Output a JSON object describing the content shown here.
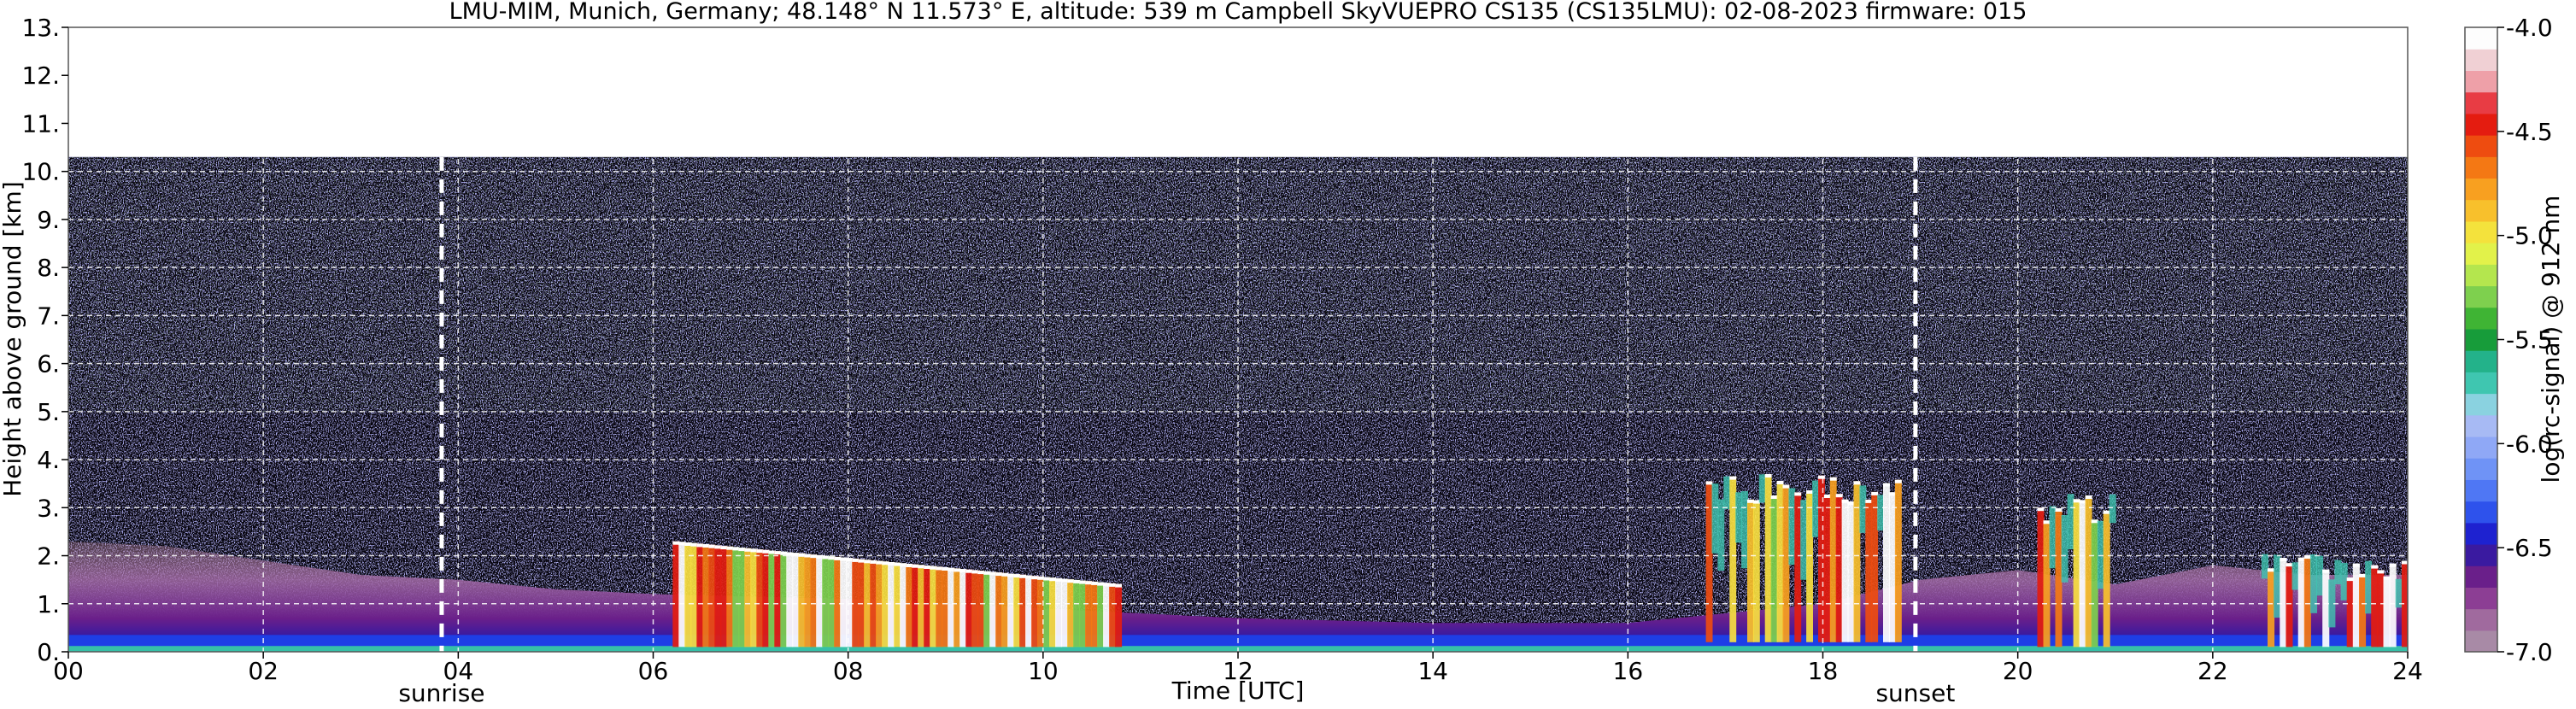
{
  "chart_data": {
    "type": "heatmap",
    "title": "LMU-MIM, Munich, Germany; 48.148° N 11.573° E, altitude: 539 m    Campbell SkyVUEPRO CS135 (CS135LMU): 02-08-2023    firmware: 015",
    "xlabel": "Time [UTC]",
    "ylabel": "Height above ground [km]",
    "xlim": [
      0,
      24
    ],
    "ylim": [
      0,
      13
    ],
    "x_ticks": [
      "00",
      "02",
      "04",
      "06",
      "08",
      "10",
      "12",
      "14",
      "16",
      "18",
      "20",
      "22",
      "24"
    ],
    "y_ticks": [
      "0.",
      "1.",
      "2.",
      "3.",
      "4.",
      "5.",
      "6.",
      "7.",
      "8.",
      "9.",
      "10.",
      "11.",
      "12.",
      "13."
    ],
    "grid": true,
    "annotations": [
      {
        "label": "sunrise",
        "x": 3.83
      },
      {
        "label": "sunset",
        "x": 18.95
      }
    ],
    "colorbar": {
      "label": "log(rc-signal) @ 912 nm",
      "range": [
        -7.0,
        -4.0
      ],
      "ticks": [
        "-4.0",
        "-4.5",
        "-5.0",
        "-5.5",
        "-6.0",
        "-6.5",
        "-7.0"
      ],
      "tick_values": [
        -4.0,
        -4.5,
        -5.0,
        -5.5,
        -6.0,
        -6.5,
        -7.0
      ],
      "colors": [
        "#a88aa6",
        "#a06a9e",
        "#8c3e94",
        "#6a1f8a",
        "#3a1aa0",
        "#1e22d0",
        "#2e52ec",
        "#4f77f4",
        "#6f93f6",
        "#8fa8f6",
        "#a7baf4",
        "#8ad2e0",
        "#3fc6b0",
        "#23b28a",
        "#179c3a",
        "#3fb434",
        "#7ed04e",
        "#b4e64e",
        "#e2f24a",
        "#f4e23c",
        "#f8c02c",
        "#f8a020",
        "#f47814",
        "#ee4c10",
        "#e41c10",
        "#e83c44",
        "#eea0a8",
        "#f0d0d4",
        "#fdfdfd"
      ]
    },
    "features": [
      {
        "name": "aerosol boundary layer",
        "x": [
          0,
          24
        ],
        "y": [
          0,
          2.3
        ],
        "value": -6.6
      },
      {
        "name": "cloud layer",
        "x": [
          6.2,
          10.8
        ],
        "y": [
          0.1,
          2.3
        ],
        "value": -4.5
      },
      {
        "name": "cloud layer",
        "x": [
          16.8,
          18.8
        ],
        "y": [
          0.2,
          3.7
        ],
        "value": -4.8
      },
      {
        "name": "cloud layer",
        "x": [
          20.2,
          21.0
        ],
        "y": [
          0.1,
          3.3
        ],
        "value": -4.4
      },
      {
        "name": "cloud layer",
        "x": [
          22.5,
          24
        ],
        "y": [
          0.1,
          2.1
        ],
        "value": -4.3
      }
    ]
  }
}
